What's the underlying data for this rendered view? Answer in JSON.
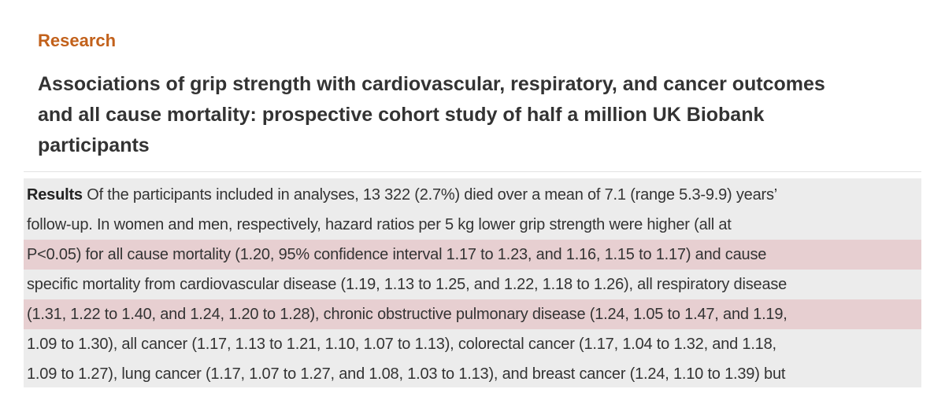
{
  "section": {
    "label": "Research"
  },
  "article": {
    "title_lines": [
      "Associations of grip strength with cardiovascular, respiratory, and cancer outcomes",
      "and all cause mortality: prospective cohort study of half a million UK Biobank",
      "participants"
    ]
  },
  "abstract": {
    "lead": "Results",
    "first_line_rest": " Of the participants included in analyses, 13 322 (2.7%) died over a mean of 7.1 (range 5.3-9.9) years’",
    "lines": [
      "follow-up. In women and men, respectively, hazard ratios per 5 kg lower grip strength were higher (all at",
      "P<0.05) for all cause mortality (1.20, 95% confidence interval 1.17 to 1.23, and 1.16, 1.15 to 1.17) and cause",
      "specific mortality from cardiovascular disease (1.19, 1.13 to 1.25, and 1.22, 1.18 to 1.26), all respiratory disease",
      "(1.31, 1.22 to 1.40, and 1.24, 1.20 to 1.28), chronic obstructive pulmonary disease (1.24, 1.05 to 1.47, and 1.19,",
      "1.09 to 1.30), all cancer (1.17, 1.13 to 1.21, 1.10, 1.07 to 1.13), colorectal cancer (1.17, 1.04 to 1.32, and 1.18,",
      "1.09 to 1.27), lung cancer (1.17, 1.07 to 1.27, and 1.08, 1.03 to 1.13), and breast cancer (1.24, 1.10 to 1.39) but"
    ],
    "highlight_color": "#e7cfd1"
  }
}
